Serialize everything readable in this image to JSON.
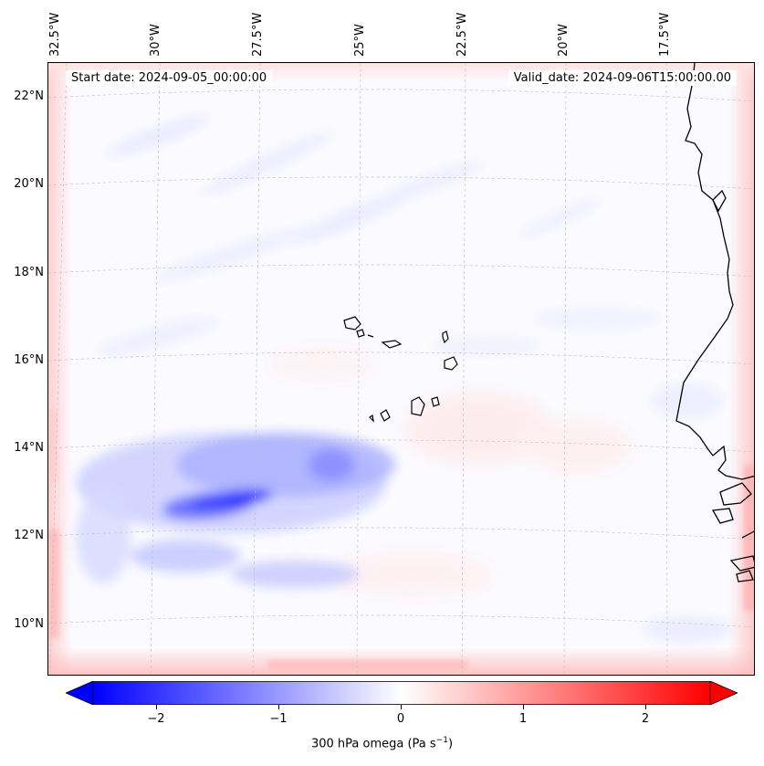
{
  "map": {
    "title_left": "Start date: 2024-09-05_00:00:00",
    "title_right": "Valid_date: 2024-09-06T15:00:00.00",
    "lon_labels": [
      "32.5°W",
      "30°W",
      "27.5°W",
      "25°W",
      "22.5°W",
      "20°W",
      "17.5°W"
    ],
    "lat_labels": [
      "22°N",
      "20°N",
      "18°N",
      "16°N",
      "14°N",
      "12°N",
      "10°N"
    ],
    "variable": "300 hPa omega",
    "units": "Pa s",
    "units_exponent": "−1",
    "colormap": "bwr",
    "colors": {
      "min": "#0000ff",
      "mid": "#ffffff",
      "max": "#ff0000",
      "coast": "#000000"
    }
  },
  "colorbar": {
    "ticks": [
      "−2",
      "−1",
      "0",
      "1",
      "2"
    ],
    "range": [
      -2.6,
      2.6
    ],
    "extend": "both",
    "label": "300 hPa omega (Pa s",
    "label_sup": "−1",
    "label_close": ")"
  }
}
